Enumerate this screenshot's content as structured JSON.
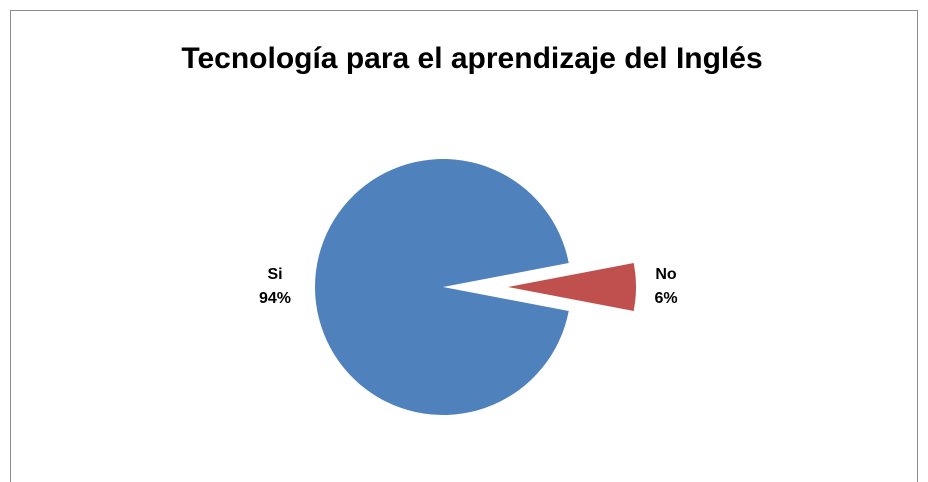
{
  "chart_data": {
    "type": "pie",
    "title": "Tecnología para el aprendizaje del Inglés",
    "categories": [
      "Si",
      "No"
    ],
    "values": [
      94,
      6
    ],
    "value_labels": [
      "94%",
      "6%"
    ],
    "colors": [
      "#4f81bd",
      "#c0504d"
    ],
    "exploded": [
      false,
      true
    ]
  }
}
